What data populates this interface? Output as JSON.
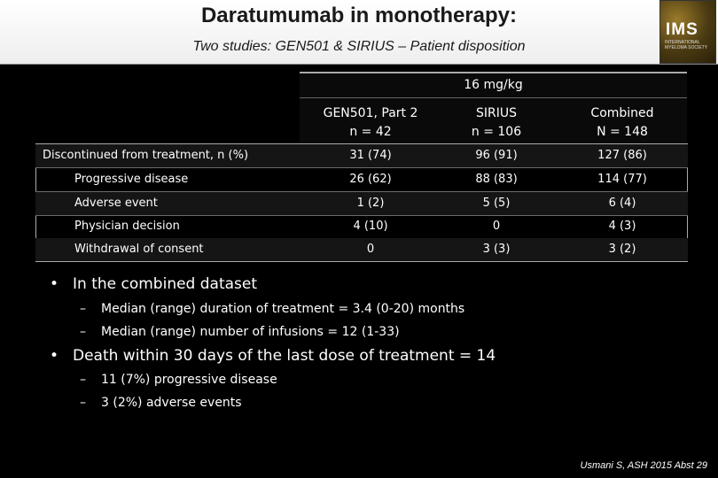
{
  "header": {
    "title": "Daratumumab in monotherapy:",
    "subtitle": "Two studies: GEN501 & SIRIUS – Patient disposition",
    "logo": {
      "mark": "IMS",
      "text": "International Myeloma Society"
    }
  },
  "table": {
    "group_header": "16 mg/kg",
    "columns": [
      {
        "name": "GEN501, Part 2",
        "n": "n = 42"
      },
      {
        "name": "SIRIUS",
        "n": "n = 106"
      },
      {
        "name": "Combined",
        "n": "N = 148"
      }
    ],
    "rows": [
      {
        "label": "Discontinued from treatment, n (%)",
        "values": [
          "31 (74)",
          "96 (91)",
          "127 (86)"
        ]
      },
      {
        "label": "Progressive disease",
        "values": [
          "26 (62)",
          "88 (83)",
          "114 (77)"
        ]
      },
      {
        "label": "Adverse event",
        "values": [
          "1 (2)",
          "5 (5)",
          "6 (4)"
        ]
      },
      {
        "label": "Physician decision",
        "values": [
          "4 (10)",
          "0",
          "4 (3)"
        ]
      },
      {
        "label": "Withdrawal of consent",
        "values": [
          "0",
          "3 (3)",
          "3 (2)"
        ]
      }
    ]
  },
  "bullets": [
    {
      "text": "In the combined dataset",
      "sub": [
        "Median (range) duration of treatment = 3.4 (0-20) months",
        "Median (range) number of infusions = 12 (1-33)"
      ]
    },
    {
      "text": "Death within 30 days of the last dose of treatment = 14",
      "sub": [
        "11 (7%) progressive disease",
        "3 (2%) adverse events"
      ]
    }
  ],
  "bullet_glyph": "•",
  "dash_glyph": "–",
  "citation": "Usmani S, ASH 2015 Abst 29"
}
